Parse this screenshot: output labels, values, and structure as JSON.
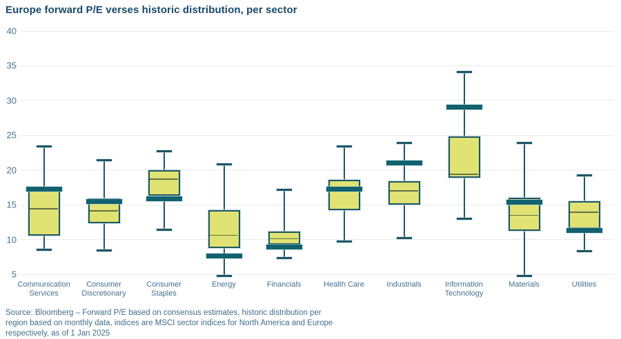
{
  "title": "Europe forward P/E verses historic distribution, per sector",
  "source_lines": [
    "Source: Bloomberg – Forward P/E based on consensus estimates, historic distribution per",
    "region based on monthly data, indices are MSCI sector indices for North America and Europe",
    "respectively, as of 1 Jan 2025"
  ],
  "colors": {
    "title_text": "#17496b",
    "axis_text": "#44708e",
    "grid": "#eaeaea",
    "box_fill": "#e0e373",
    "box_border": "#1c5564",
    "median_line": "#5f7147",
    "current_band": "#11616e",
    "background": "#ffffff"
  },
  "chart_data": {
    "type": "boxplot",
    "title": "Europe forward P/E verses historic distribution, per sector",
    "ylim": [
      5,
      40
    ],
    "yticks": [
      40,
      35,
      30,
      25,
      20,
      15,
      10,
      5
    ],
    "grid": "horizontal",
    "legend": "none",
    "categories": [
      "Communication Services",
      "Consumer Discretionary",
      "Consumer Staples",
      "Energy",
      "Financials",
      "Health Care",
      "Industrials",
      "Information Technology",
      "Materials",
      "Utilities"
    ],
    "series": [
      {
        "name": "Communication Services",
        "low": 8.5,
        "q1": 10.6,
        "median": 14.4,
        "q3": 17.3,
        "high": 23.4,
        "current": 17.2
      },
      {
        "name": "Consumer Discretionary",
        "low": 8.4,
        "q1": 12.3,
        "median": 14.1,
        "q3": 15.9,
        "high": 21.4,
        "current": 15.5
      },
      {
        "name": "Consumer Staples",
        "low": 11.4,
        "q1": 16.3,
        "median": 18.7,
        "q3": 20.0,
        "high": 22.7,
        "current": 15.9
      },
      {
        "name": "Energy",
        "low": 4.8,
        "q1": 8.8,
        "median": 10.6,
        "q3": 14.2,
        "high": 20.8,
        "current": 7.6
      },
      {
        "name": "Financials",
        "low": 7.3,
        "q1": 9.3,
        "median": 10.1,
        "q3": 11.1,
        "high": 17.1,
        "current": 8.9
      },
      {
        "name": "Health Care",
        "low": 9.7,
        "q1": 14.2,
        "median": 17.2,
        "q3": 18.6,
        "high": 23.4,
        "current": 17.2
      },
      {
        "name": "Industrials",
        "low": 10.2,
        "q1": 15.0,
        "median": 17.0,
        "q3": 18.4,
        "high": 23.9,
        "current": 21.0
      },
      {
        "name": "Information Technology",
        "low": 13.0,
        "q1": 18.9,
        "median": 19.4,
        "q3": 24.8,
        "high": 34.1,
        "current": 29.0
      },
      {
        "name": "Materials",
        "low": 4.8,
        "q1": 11.2,
        "median": 13.5,
        "q3": 16.0,
        "high": 23.9,
        "current": 15.4
      },
      {
        "name": "Utilities",
        "low": 8.3,
        "q1": 11.5,
        "median": 13.9,
        "q3": 15.5,
        "high": 19.2,
        "current": 11.3
      }
    ]
  }
}
